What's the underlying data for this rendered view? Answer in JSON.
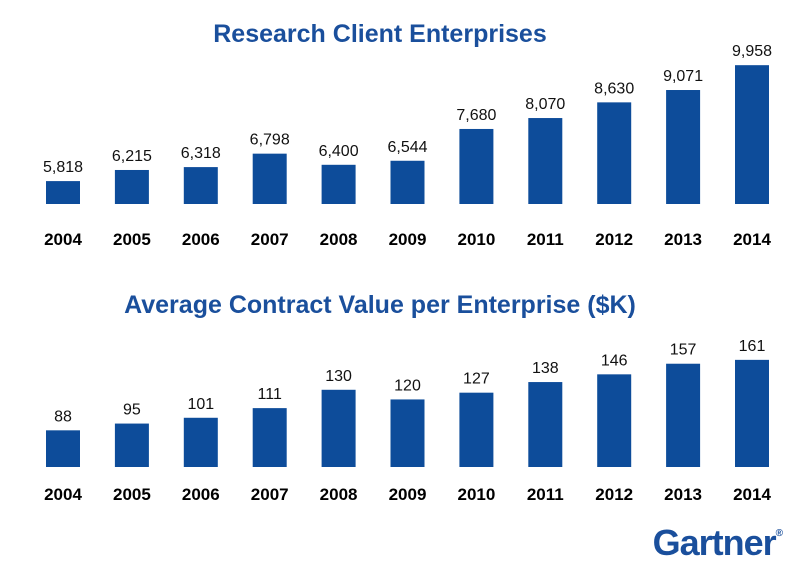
{
  "brand": {
    "logo": "Gartner",
    "color": "#1a4f9c"
  },
  "colors": {
    "bar": "#0d4c9a",
    "title": "#1a4f9c"
  },
  "chart_data": [
    {
      "type": "bar",
      "title": "Research Client Enterprises",
      "categories": [
        "2004",
        "2005",
        "2006",
        "2007",
        "2008",
        "2009",
        "2010",
        "2011",
        "2012",
        "2013",
        "2014"
      ],
      "values": [
        5818,
        6215,
        6318,
        6798,
        6400,
        6544,
        7680,
        8070,
        8630,
        9071,
        9958
      ],
      "value_labels": [
        "5,818",
        "6,215",
        "6,318",
        "6,798",
        "6,400",
        "6,544",
        "7,680",
        "8,070",
        "8,630",
        "9,071",
        "9,958"
      ],
      "xlabel": "",
      "ylabel": "",
      "ylim": [
        5000,
        10000
      ],
      "grid": false,
      "legend": "none"
    },
    {
      "type": "bar",
      "title": "Average Contract Value per Enterprise ($K)",
      "categories": [
        "2004",
        "2005",
        "2006",
        "2007",
        "2008",
        "2009",
        "2010",
        "2011",
        "2012",
        "2013",
        "2014"
      ],
      "values": [
        88,
        95,
        101,
        111,
        130,
        120,
        127,
        138,
        146,
        157,
        161
      ],
      "value_labels": [
        "88",
        "95",
        "101",
        "111",
        "130",
        "120",
        "127",
        "138",
        "146",
        "157",
        "161"
      ],
      "xlabel": "",
      "ylabel": "",
      "ylim": [
        50,
        165
      ],
      "grid": false,
      "legend": "none"
    }
  ]
}
